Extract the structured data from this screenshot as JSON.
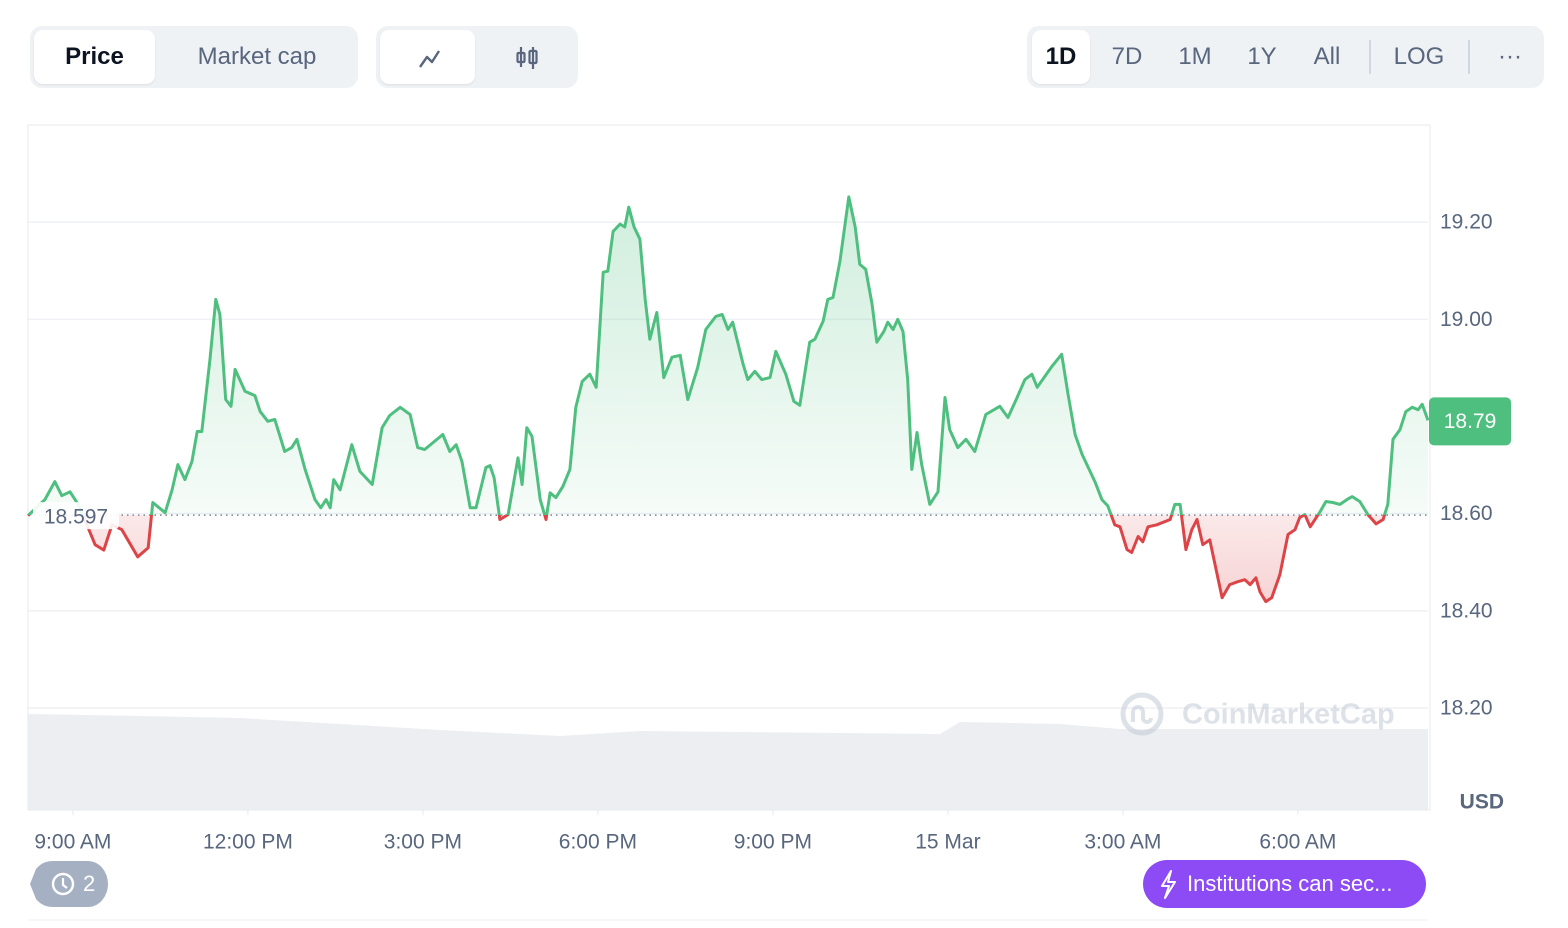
{
  "toolbar": {
    "view_tabs": [
      "Price",
      "Market cap"
    ],
    "ranges": [
      "1D",
      "7D",
      "1M",
      "1Y",
      "All"
    ],
    "scale": "LOG",
    "more": "···"
  },
  "chart_data": {
    "type": "line",
    "color_up": "#4fbf7f",
    "color_down": "#dc4447",
    "baseline": 18.597,
    "current_price": 18.79,
    "unit": "USD",
    "watermark": "CoinMarketCap",
    "grid": true,
    "xlim": [
      8.23,
      32.23
    ],
    "ylim": [
      17.99,
      19.4
    ],
    "xticks": [
      {
        "value": 9,
        "label": "9:00 AM"
      },
      {
        "value": 12,
        "label": "12:00 PM"
      },
      {
        "value": 15,
        "label": "3:00 PM"
      },
      {
        "value": 18,
        "label": "6:00 PM"
      },
      {
        "value": 21,
        "label": "9:00 PM"
      },
      {
        "value": 24,
        "label": "15 Mar"
      },
      {
        "value": 27,
        "label": "3:00 AM"
      },
      {
        "value": 30,
        "label": "6:00 AM"
      }
    ],
    "yticks": [
      {
        "value": 18.2,
        "label": "18.20"
      },
      {
        "value": 18.4,
        "label": "18.40"
      },
      {
        "value": 18.6,
        "label": "18.60"
      },
      {
        "value": 19.0,
        "label": "19.00"
      },
      {
        "value": 19.2,
        "label": "19.20"
      }
    ],
    "x": [
      8.23,
      8.52,
      8.69,
      8.81,
      8.95,
      9.09,
      9.26,
      9.38,
      9.53,
      9.67,
      9.84,
      10.11,
      10.29,
      10.37,
      10.58,
      10.7,
      10.8,
      10.92,
      11.04,
      11.13,
      11.21,
      11.35,
      11.45,
      11.52,
      11.62,
      11.71,
      11.78,
      11.95,
      12.12,
      12.21,
      12.34,
      12.46,
      12.63,
      12.75,
      12.84,
      12.98,
      13.15,
      13.25,
      13.34,
      13.41,
      13.47,
      13.58,
      13.78,
      13.92,
      14.13,
      14.3,
      14.43,
      14.61,
      14.78,
      14.91,
      15.03,
      15.34,
      15.46,
      15.57,
      15.67,
      15.81,
      15.91,
      16.08,
      16.15,
      16.22,
      16.32,
      16.46,
      16.63,
      16.7,
      16.78,
      16.87,
      17.01,
      17.11,
      17.18,
      17.28,
      17.4,
      17.52,
      17.62,
      17.73,
      17.86,
      17.97,
      18.09,
      18.17,
      18.26,
      18.38,
      18.46,
      18.53,
      18.62,
      18.72,
      18.81,
      18.89,
      19.01,
      19.13,
      19.27,
      19.41,
      19.54,
      19.71,
      19.85,
      20.02,
      20.13,
      20.23,
      20.31,
      20.49,
      20.57,
      20.69,
      20.81,
      20.95,
      21.05,
      21.22,
      21.36,
      21.46,
      21.63,
      21.72,
      21.86,
      21.94,
      22.03,
      22.15,
      22.3,
      22.41,
      22.49,
      22.59,
      22.7,
      22.78,
      22.9,
      22.97,
      23.06,
      23.14,
      23.23,
      23.31,
      23.38,
      23.47,
      23.55,
      23.69,
      23.83,
      23.95,
      24.03,
      24.17,
      24.31,
      24.46,
      24.65,
      24.89,
      25.03,
      25.17,
      25.32,
      25.44,
      25.53,
      25.78,
      25.95,
      26.06,
      26.18,
      26.3,
      26.52,
      26.64,
      26.74,
      26.86,
      26.95,
      27.07,
      27.15,
      27.26,
      27.34,
      27.43,
      27.58,
      27.81,
      27.89,
      27.98,
      28.08,
      28.18,
      28.27,
      28.37,
      28.49,
      28.7,
      28.83,
      28.97,
      29.09,
      29.18,
      29.28,
      29.35,
      29.45,
      29.55,
      29.69,
      29.83,
      29.95,
      30.03,
      30.12,
      30.21,
      30.38,
      30.48,
      30.6,
      30.72,
      30.84,
      30.93,
      31.06,
      31.2,
      31.34,
      31.46,
      31.54,
      31.63,
      31.75,
      31.85,
      31.96,
      32.06,
      32.13,
      32.23
    ],
    "values": [
      18.596,
      18.629,
      18.666,
      18.637,
      18.645,
      18.619,
      18.571,
      18.536,
      18.525,
      18.577,
      18.567,
      18.511,
      18.53,
      18.623,
      18.602,
      18.649,
      18.701,
      18.67,
      18.707,
      18.769,
      18.769,
      18.918,
      19.041,
      19.01,
      18.835,
      18.821,
      18.897,
      18.852,
      18.843,
      18.81,
      18.79,
      18.794,
      18.728,
      18.736,
      18.753,
      18.691,
      18.629,
      18.612,
      18.629,
      18.612,
      18.67,
      18.649,
      18.742,
      18.687,
      18.66,
      18.777,
      18.802,
      18.819,
      18.804,
      18.736,
      18.732,
      18.763,
      18.728,
      18.742,
      18.707,
      18.612,
      18.612,
      18.695,
      18.699,
      18.674,
      18.588,
      18.598,
      18.715,
      18.66,
      18.777,
      18.759,
      18.629,
      18.588,
      18.643,
      18.633,
      18.656,
      18.691,
      18.819,
      18.872,
      18.887,
      18.86,
      19.097,
      19.099,
      19.181,
      19.196,
      19.19,
      19.231,
      19.19,
      19.165,
      19.041,
      18.959,
      19.014,
      18.88,
      18.922,
      18.926,
      18.835,
      18.901,
      18.979,
      19.006,
      19.01,
      18.979,
      18.994,
      18.907,
      18.876,
      18.893,
      18.876,
      18.88,
      18.934,
      18.887,
      18.831,
      18.823,
      18.953,
      18.959,
      18.996,
      19.041,
      19.045,
      19.12,
      19.252,
      19.19,
      19.113,
      19.103,
      19.031,
      18.953,
      18.975,
      18.994,
      18.979,
      19.0,
      18.975,
      18.876,
      18.691,
      18.767,
      18.701,
      18.619,
      18.645,
      18.839,
      18.773,
      18.736,
      18.753,
      18.728,
      18.804,
      18.821,
      18.798,
      18.835,
      18.876,
      18.887,
      18.86,
      18.903,
      18.928,
      18.845,
      18.763,
      18.722,
      18.666,
      18.629,
      18.616,
      18.577,
      18.573,
      18.526,
      18.52,
      18.553,
      18.542,
      18.573,
      18.577,
      18.588,
      18.619,
      18.619,
      18.526,
      18.567,
      18.588,
      18.536,
      18.546,
      18.427,
      18.454,
      18.46,
      18.464,
      18.454,
      18.468,
      18.439,
      18.419,
      18.427,
      18.474,
      18.557,
      18.567,
      18.592,
      18.598,
      18.573,
      18.604,
      18.625,
      18.623,
      18.619,
      18.629,
      18.635,
      18.625,
      18.598,
      18.579,
      18.588,
      18.619,
      18.753,
      18.773,
      18.81,
      18.819,
      18.814,
      18.825,
      18.792
    ]
  },
  "footer": {
    "history_count": 2,
    "banner": "Institutions can sec..."
  }
}
